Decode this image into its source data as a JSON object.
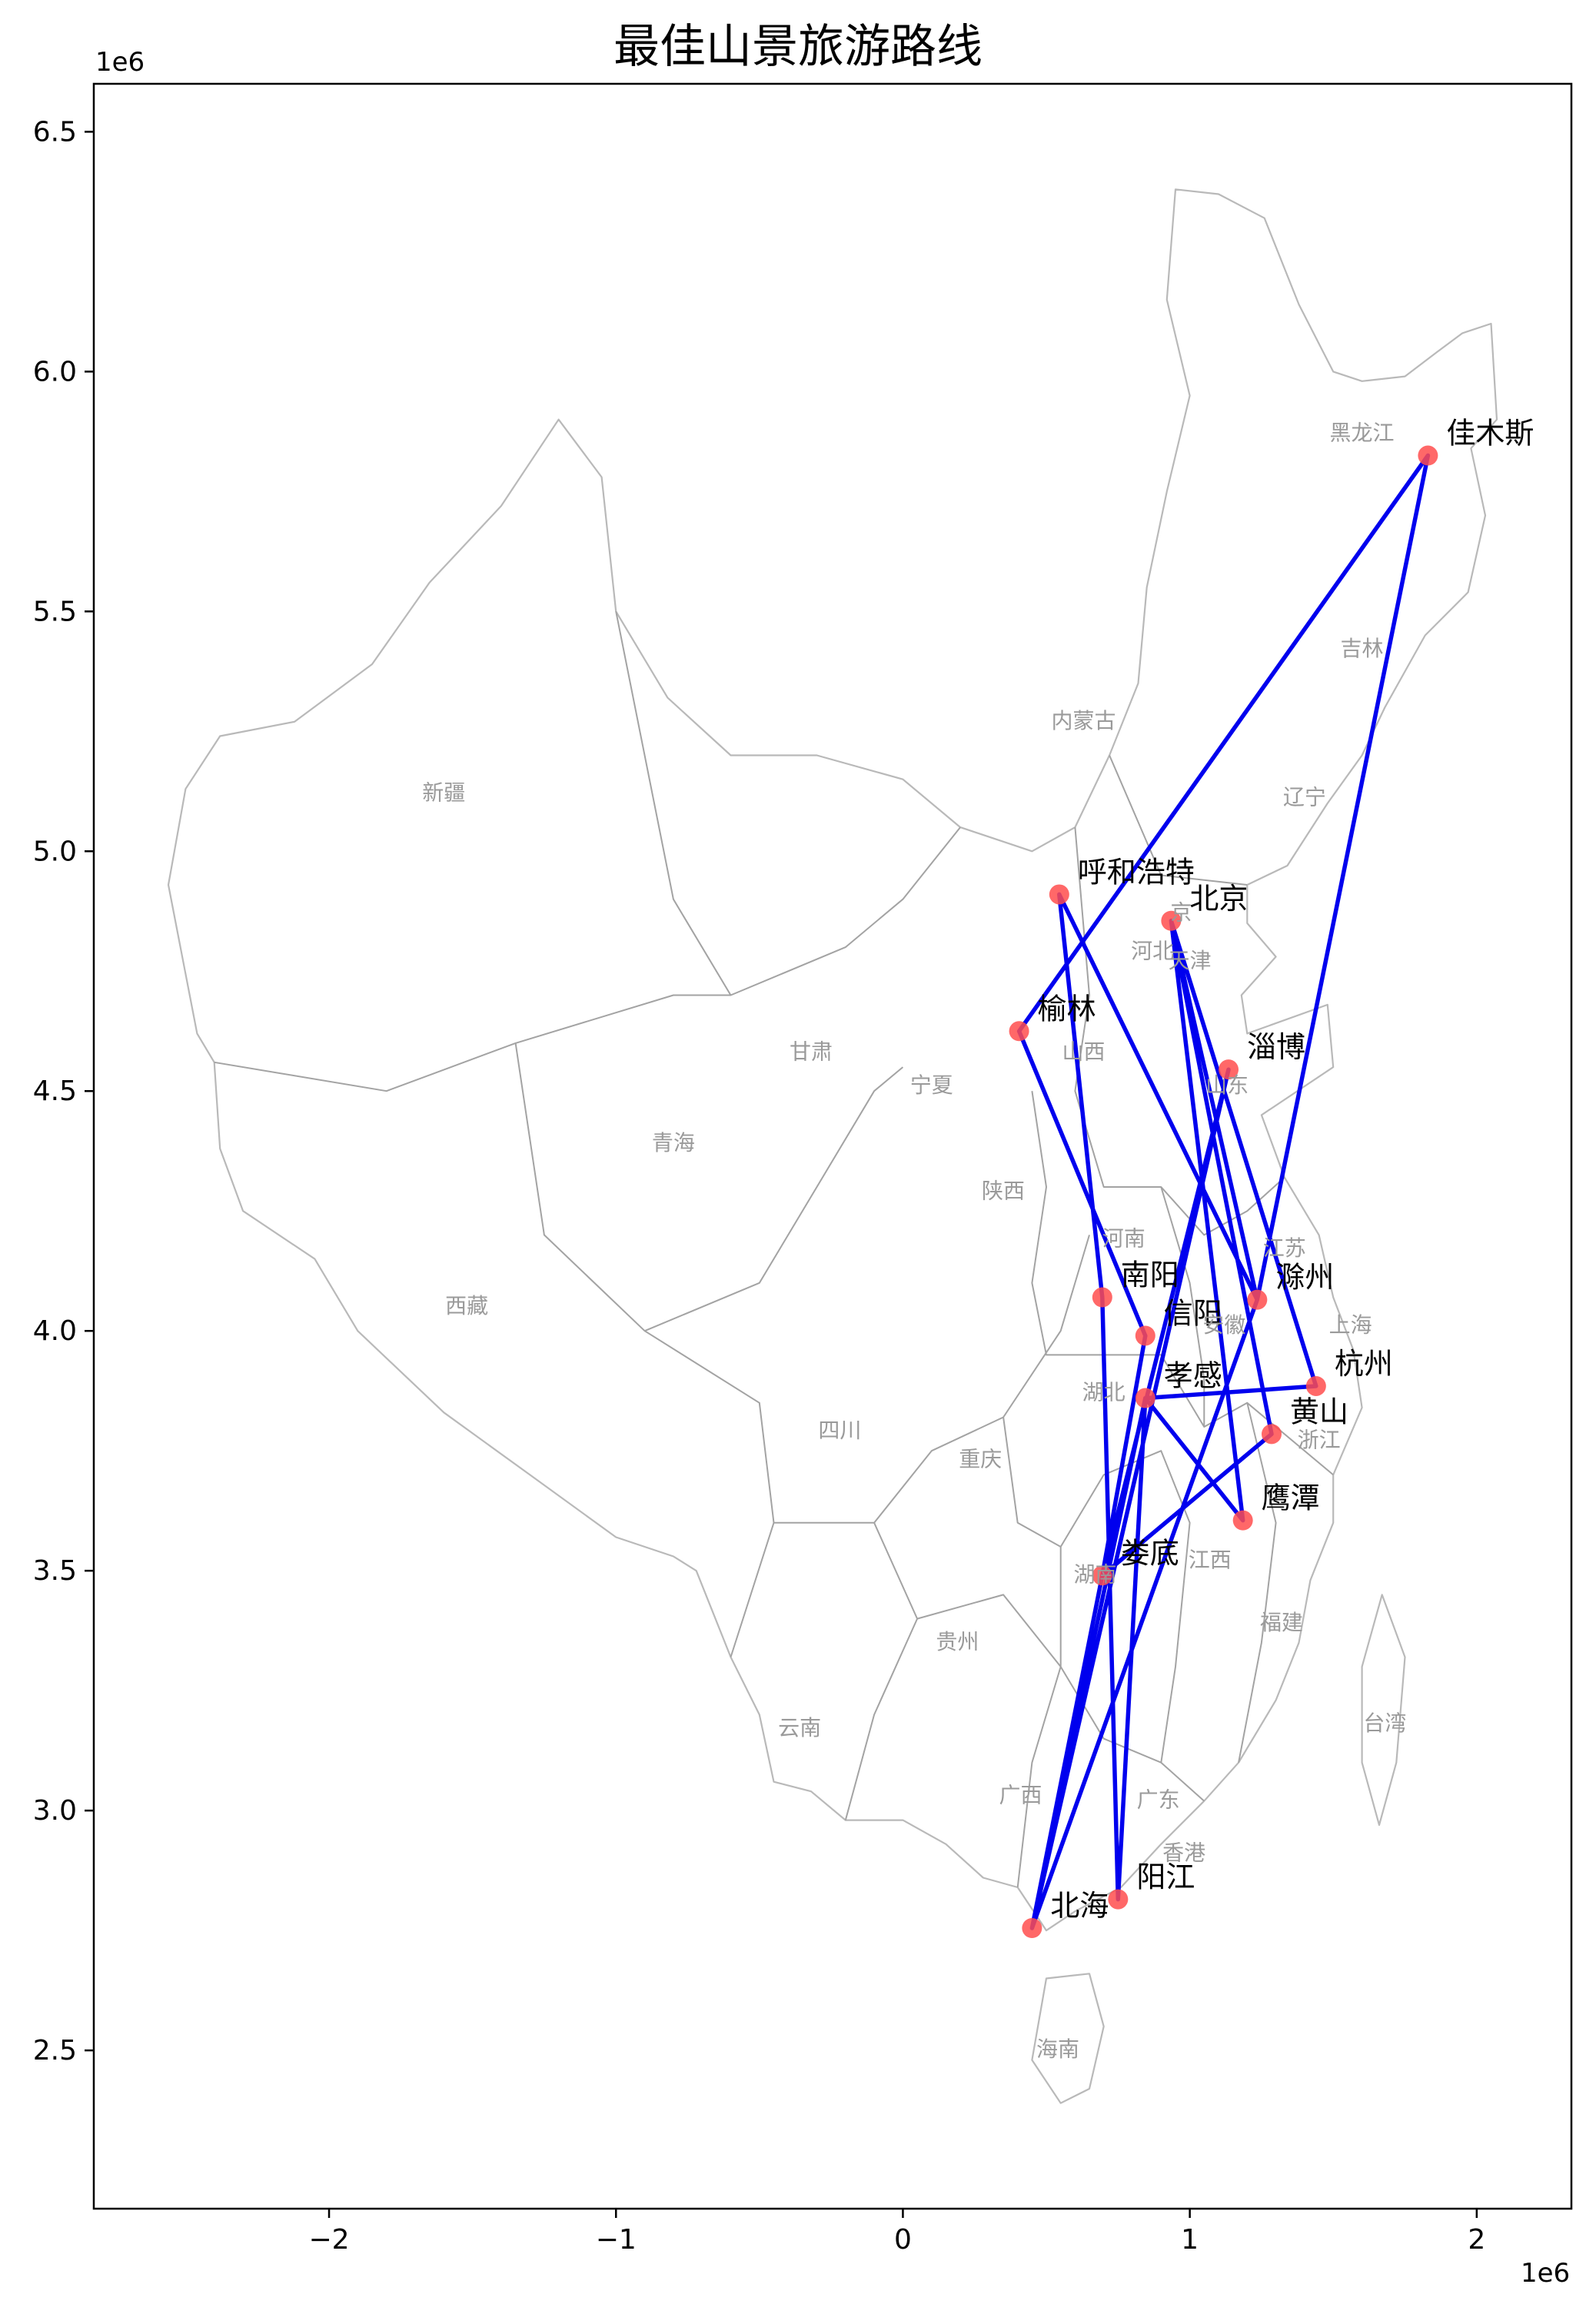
{
  "title": "最佳山景旅游路线",
  "x_offset_label": "1e6",
  "y_offset_label": "1e6",
  "chart_data": {
    "type": "map-route",
    "xlim": [
      -2.82,
      2.33
    ],
    "ylim": [
      2.17,
      6.6
    ],
    "x_ticks": [
      {
        "value": -2,
        "label": "−2"
      },
      {
        "value": -1,
        "label": "−1"
      },
      {
        "value": 0,
        "label": "0"
      },
      {
        "value": 1,
        "label": "1"
      },
      {
        "value": 2,
        "label": "2"
      }
    ],
    "y_ticks": [
      {
        "value": 2.5,
        "label": "2.5"
      },
      {
        "value": 3.0,
        "label": "3.0"
      },
      {
        "value": 3.5,
        "label": "3.5"
      },
      {
        "value": 4.0,
        "label": "4.0"
      },
      {
        "value": 4.5,
        "label": "4.5"
      },
      {
        "value": 5.0,
        "label": "5.0"
      },
      {
        "value": 5.5,
        "label": "5.5"
      },
      {
        "value": 6.0,
        "label": "6.0"
      },
      {
        "value": 6.5,
        "label": "6.5"
      }
    ],
    "cities": [
      {
        "name": "佳木斯",
        "x": 1.83,
        "y": 5.825
      },
      {
        "name": "呼和浩特",
        "x": 0.545,
        "y": 4.91
      },
      {
        "name": "北京",
        "x": 0.935,
        "y": 4.855
      },
      {
        "name": "榆林",
        "x": 0.405,
        "y": 4.625
      },
      {
        "name": "淄博",
        "x": 1.135,
        "y": 4.545
      },
      {
        "name": "南阳",
        "x": 0.695,
        "y": 4.07
      },
      {
        "name": "滁州",
        "x": 1.235,
        "y": 4.065
      },
      {
        "name": "信阳",
        "x": 0.845,
        "y": 3.99
      },
      {
        "name": "杭州",
        "x": 1.44,
        "y": 3.885
      },
      {
        "name": "孝感",
        "x": 0.845,
        "y": 3.86
      },
      {
        "name": "黄山",
        "x": 1.285,
        "y": 3.785
      },
      {
        "name": "鹰潭",
        "x": 1.185,
        "y": 3.605
      },
      {
        "name": "娄底",
        "x": 0.695,
        "y": 3.49
      },
      {
        "name": "阳江",
        "x": 0.75,
        "y": 2.815
      },
      {
        "name": "北海",
        "x": 0.45,
        "y": 2.755
      }
    ],
    "route": [
      "佳木斯",
      "榆林",
      "信阳",
      "娄底",
      "北海",
      "孝感",
      "杭州",
      "北京",
      "黄山",
      "娄底",
      "淄博",
      "北海",
      "滁州",
      "北京",
      "鹰潭",
      "孝感",
      "阳江",
      "南阳",
      "呼和浩特",
      "滁州",
      "佳木斯"
    ],
    "provinces": [
      {
        "name": "黑龙江",
        "x": 1.6,
        "y": 5.87
      },
      {
        "name": "吉林",
        "x": 1.6,
        "y": 5.42
      },
      {
        "name": "辽宁",
        "x": 1.4,
        "y": 5.11
      },
      {
        "name": "内蒙古",
        "x": 0.63,
        "y": 5.27
      },
      {
        "name": "新疆",
        "x": -1.6,
        "y": 5.12
      },
      {
        "name": "甘肃",
        "x": -0.32,
        "y": 4.58
      },
      {
        "name": "宁夏",
        "x": 0.1,
        "y": 4.51
      },
      {
        "name": "山西",
        "x": 0.63,
        "y": 4.58
      },
      {
        "name": "河北",
        "x": 0.87,
        "y": 4.79
      },
      {
        "name": "天津",
        "x": 1.0,
        "y": 4.77
      },
      {
        "name": "京",
        "x": 0.97,
        "y": 4.87
      },
      {
        "name": "山东",
        "x": 1.13,
        "y": 4.51
      },
      {
        "name": "青海",
        "x": -0.8,
        "y": 4.39
      },
      {
        "name": "陕西",
        "x": 0.35,
        "y": 4.29
      },
      {
        "name": "河南",
        "x": 0.77,
        "y": 4.19
      },
      {
        "name": "江苏",
        "x": 1.33,
        "y": 4.17
      },
      {
        "name": "西藏",
        "x": -1.52,
        "y": 4.05
      },
      {
        "name": "安徽",
        "x": 1.12,
        "y": 4.01
      },
      {
        "name": "上海",
        "x": 1.56,
        "y": 4.01
      },
      {
        "name": "湖北",
        "x": 0.7,
        "y": 3.87
      },
      {
        "name": "四川",
        "x": -0.22,
        "y": 3.79
      },
      {
        "name": "浙江",
        "x": 1.45,
        "y": 3.77
      },
      {
        "name": "重庆",
        "x": 0.27,
        "y": 3.73
      },
      {
        "name": "湖南",
        "x": 0.67,
        "y": 3.49
      },
      {
        "name": "江西",
        "x": 1.07,
        "y": 3.52
      },
      {
        "name": "福建",
        "x": 1.32,
        "y": 3.39
      },
      {
        "name": "贵州",
        "x": 0.19,
        "y": 3.35
      },
      {
        "name": "台湾",
        "x": 1.68,
        "y": 3.18
      },
      {
        "name": "云南",
        "x": -0.36,
        "y": 3.17
      },
      {
        "name": "广西",
        "x": 0.41,
        "y": 3.03
      },
      {
        "name": "广东",
        "x": 0.89,
        "y": 3.02
      },
      {
        "name": "香港",
        "x": 0.98,
        "y": 2.91
      },
      {
        "name": "海南",
        "x": 0.54,
        "y": 2.5
      }
    ]
  }
}
